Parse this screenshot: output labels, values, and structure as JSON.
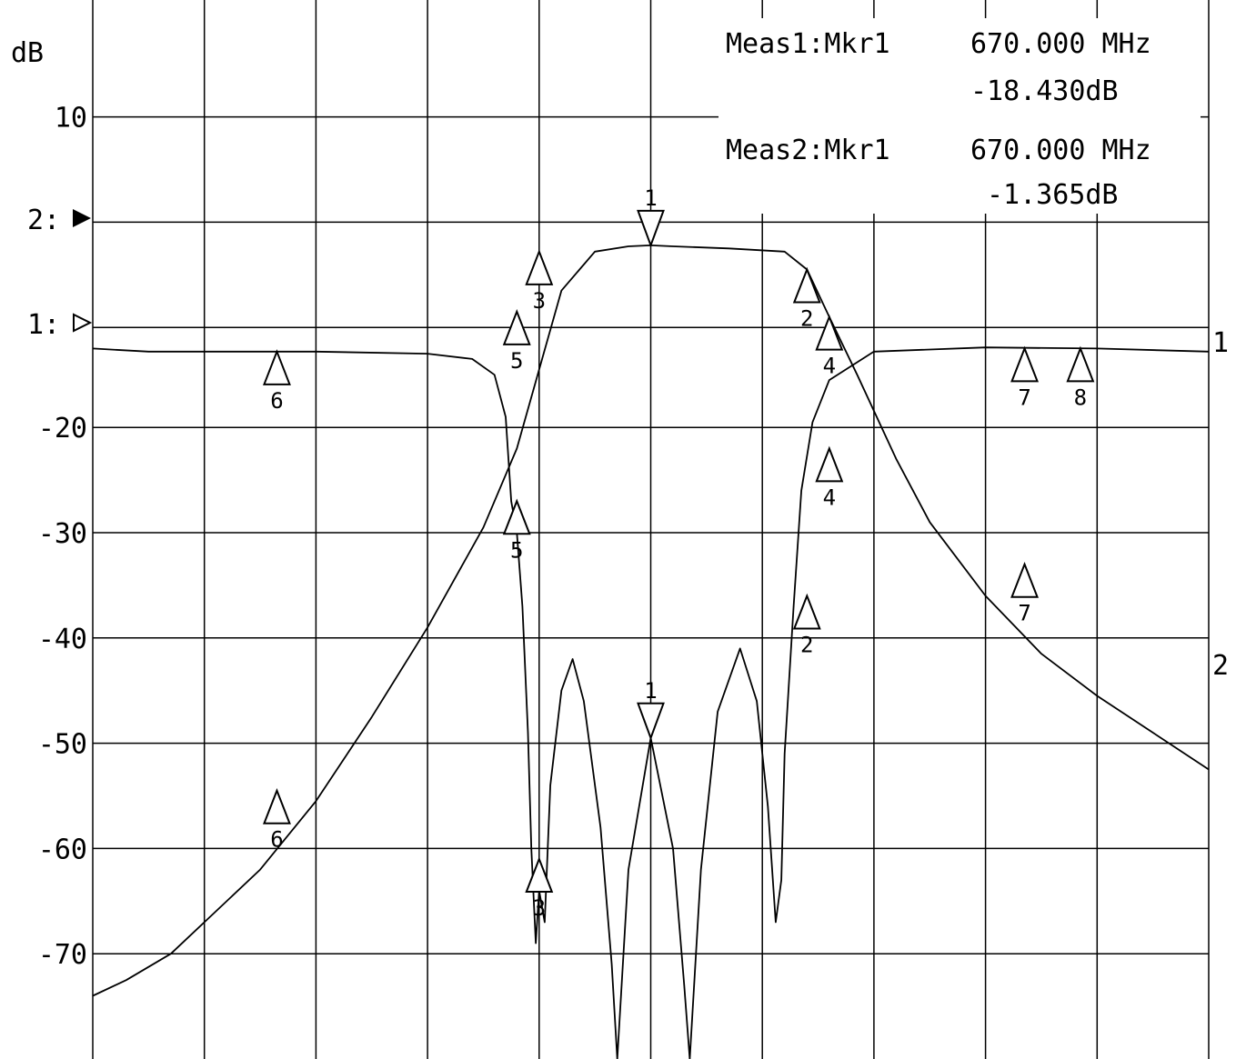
{
  "chart_data": {
    "type": "line",
    "ylabel": "dB",
    "yticks": [
      "10",
      "-20",
      "-30",
      "-40",
      "-50",
      "-60",
      "-70"
    ],
    "ref_labels": [
      "2:",
      "1:"
    ],
    "trace_end_labels": [
      "1",
      "2"
    ],
    "annotations": {
      "meas1": {
        "label": "Meas1:Mkr1",
        "freq": "670.000 MHz",
        "value": "-18.430dB"
      },
      "meas2": {
        "label": "Meas2:Mkr1",
        "freq": "670.000 MHz",
        "value": "-1.365dB"
      }
    },
    "grid": true,
    "x_divisions": 10,
    "y_range_div": [
      0,
      9.3
    ],
    "series": [
      {
        "trace": "2",
        "points_div": [
          [
            0,
            0.6
          ],
          [
            0.3,
            0.75
          ],
          [
            0.7,
            1
          ],
          [
            1,
            1.3
          ],
          [
            1.5,
            1.8
          ],
          [
            2,
            2.45
          ],
          [
            2.5,
            3.25
          ],
          [
            3,
            4.1
          ],
          [
            3.5,
            5.05
          ],
          [
            3.8,
            5.8
          ],
          [
            4,
            6.55
          ],
          [
            4.2,
            7.3
          ],
          [
            4.5,
            7.67
          ],
          [
            4.8,
            7.72
          ],
          [
            5,
            7.73
          ],
          [
            5.2,
            7.72
          ],
          [
            5.7,
            7.7
          ],
          [
            6.2,
            7.67
          ],
          [
            6.4,
            7.5
          ],
          [
            6.6,
            7.05
          ],
          [
            6.85,
            6.5
          ],
          [
            7.2,
            5.7
          ],
          [
            7.5,
            5.1
          ],
          [
            8,
            4.4
          ],
          [
            8.5,
            3.85
          ],
          [
            9,
            3.45
          ],
          [
            9.5,
            3.1
          ],
          [
            10,
            2.75
          ]
        ]
      },
      {
        "trace": "1",
        "points_div": [
          [
            0,
            6.75
          ],
          [
            0.5,
            6.72
          ],
          [
            1,
            6.72
          ],
          [
            2,
            6.72
          ],
          [
            3,
            6.7
          ],
          [
            3.4,
            6.65
          ],
          [
            3.6,
            6.5
          ],
          [
            3.7,
            6.1
          ],
          [
            3.75,
            5.3
          ],
          [
            3.8,
            5.0
          ],
          [
            3.85,
            4.3
          ],
          [
            3.9,
            3.1
          ],
          [
            3.93,
            2.0
          ],
          [
            3.97,
            1.1
          ],
          [
            4.0,
            1.6
          ],
          [
            4.05,
            1.3
          ],
          [
            4.1,
            2.6
          ],
          [
            4.2,
            3.5
          ],
          [
            4.3,
            3.8
          ],
          [
            4.4,
            3.4
          ],
          [
            4.55,
            2.2
          ],
          [
            4.65,
            0.9
          ],
          [
            4.7,
            0
          ],
          [
            4.8,
            1.8
          ],
          [
            5.0,
            3.05
          ],
          [
            5.2,
            2.0
          ],
          [
            5.3,
            0.7
          ],
          [
            5.35,
            0
          ],
          [
            5.45,
            1.8
          ],
          [
            5.6,
            3.3
          ],
          [
            5.8,
            3.9
          ],
          [
            5.95,
            3.4
          ],
          [
            6.05,
            2.4
          ],
          [
            6.12,
            1.3
          ],
          [
            6.17,
            1.7
          ],
          [
            6.2,
            2.9
          ],
          [
            6.28,
            4.3
          ],
          [
            6.35,
            5.4
          ],
          [
            6.45,
            6.05
          ],
          [
            6.6,
            6.45
          ],
          [
            7,
            6.72
          ],
          [
            8,
            6.76
          ],
          [
            9,
            6.75
          ],
          [
            10,
            6.72
          ]
        ]
      }
    ],
    "markers": [
      {
        "label": "1",
        "x_div": 5.0,
        "y_div": 7.73,
        "dir": "down"
      },
      {
        "label": "2",
        "x_div": 6.4,
        "y_div": 7.5,
        "dir": "up"
      },
      {
        "label": "3",
        "x_div": 4.0,
        "y_div": 7.67,
        "dir": "up"
      },
      {
        "label": "4",
        "x_div": 6.6,
        "y_div": 7.05,
        "dir": "up"
      },
      {
        "label": "5",
        "x_div": 3.8,
        "y_div": 7.1,
        "dir": "up"
      },
      {
        "label": "6",
        "x_div": 1.65,
        "y_div": 6.72,
        "dir": "up"
      },
      {
        "label": "7",
        "x_div": 8.35,
        "y_div": 6.75,
        "dir": "up"
      },
      {
        "label": "8",
        "x_div": 8.85,
        "y_div": 6.75,
        "dir": "up"
      },
      {
        "label": "1",
        "x_div": 5.0,
        "y_div": 3.05,
        "dir": "down"
      },
      {
        "label": "2",
        "x_div": 6.4,
        "y_div": 4.4,
        "dir": "up"
      },
      {
        "label": "3",
        "x_div": 4.0,
        "y_div": 1.9,
        "dir": "up"
      },
      {
        "label": "4",
        "x_div": 6.6,
        "y_div": 5.8,
        "dir": "up"
      },
      {
        "label": "5",
        "x_div": 3.8,
        "y_div": 5.3,
        "dir": "up"
      },
      {
        "label": "6",
        "x_div": 1.65,
        "y_div": 2.55,
        "dir": "up"
      },
      {
        "label": "7",
        "x_div": 8.35,
        "y_div": 4.7,
        "dir": "up"
      }
    ]
  }
}
